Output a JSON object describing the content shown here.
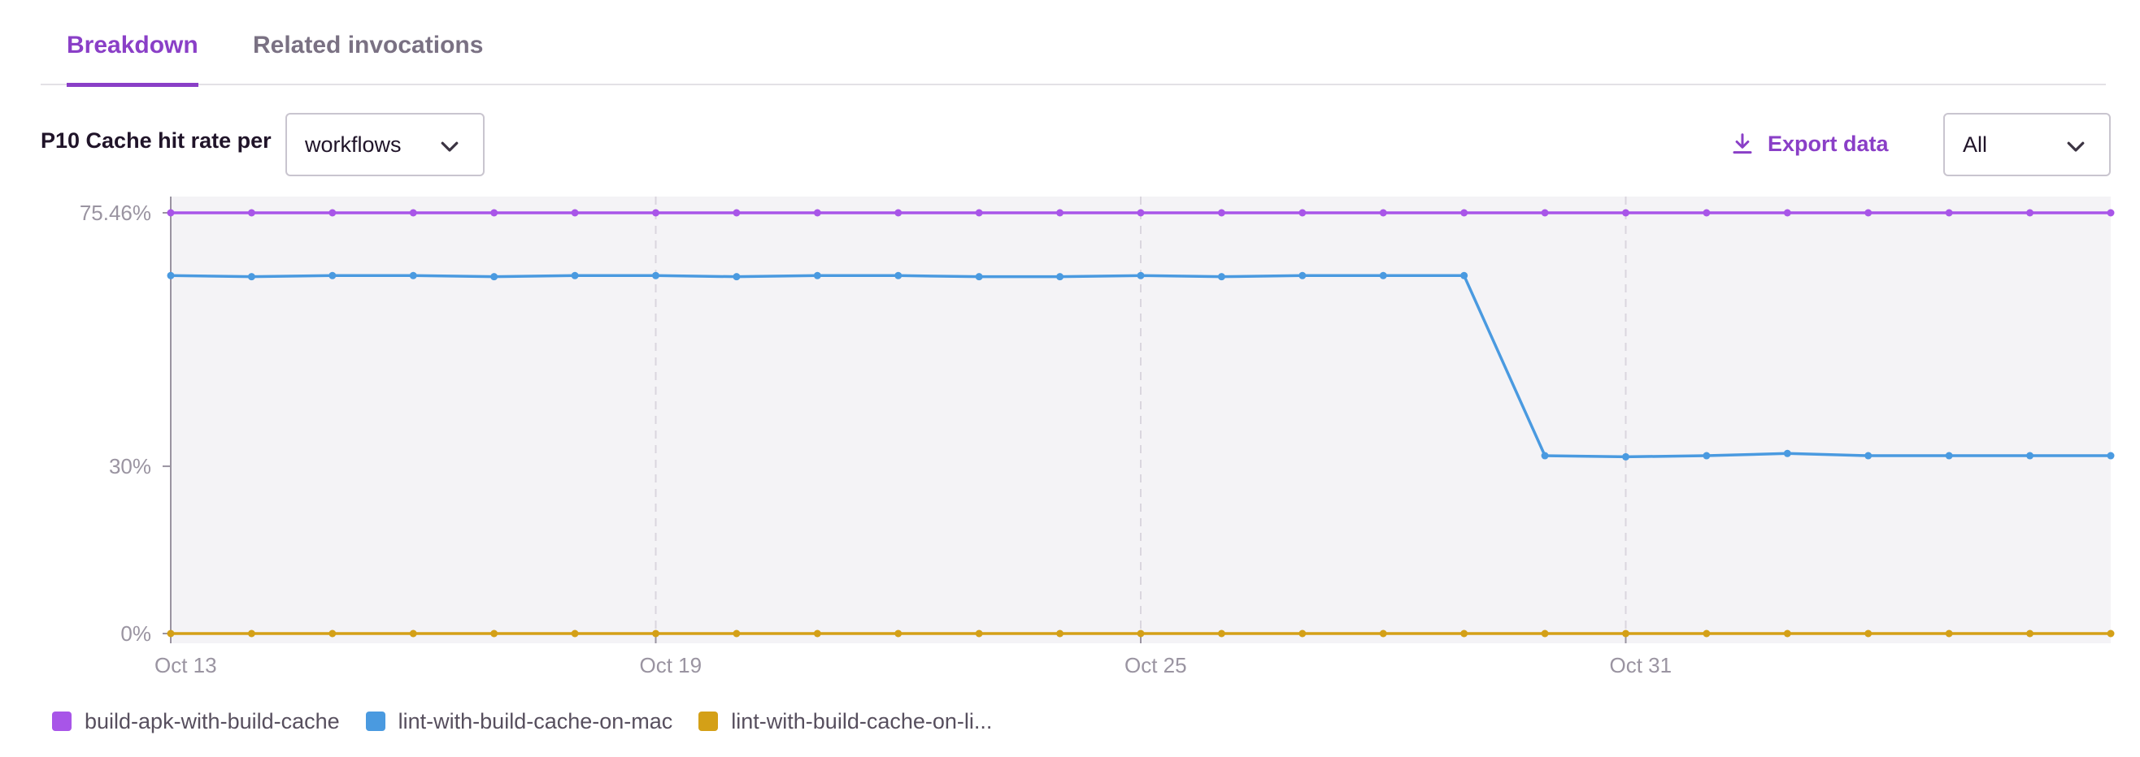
{
  "tabs": [
    {
      "label": "Breakdown",
      "active": true
    },
    {
      "label": "Related invocations",
      "active": false
    }
  ],
  "controls": {
    "metric_label": "P10 Cache hit rate per",
    "group_by_value": "workflows",
    "export_label": "Export data",
    "filter_value": "All",
    "export_icon": "download-icon",
    "chevron_icon": "chevron-down-icon"
  },
  "colors": {
    "accent": "#8a3fc7",
    "plot_background": "#f4f3f6",
    "series": [
      "#a855e8",
      "#4a9ae0",
      "#d4a017"
    ]
  },
  "chart_data": {
    "type": "line",
    "title": "",
    "xlabel": "",
    "ylabel": "",
    "ylim": [
      0,
      75.46
    ],
    "y_ticks": [
      {
        "value": 75.46,
        "label": "75.46%"
      },
      {
        "value": 30,
        "label": "30%"
      },
      {
        "value": 0,
        "label": "0%"
      }
    ],
    "x": [
      "Oct 13",
      "Oct 14",
      "Oct 15",
      "Oct 16",
      "Oct 17",
      "Oct 18",
      "Oct 19",
      "Oct 20",
      "Oct 21",
      "Oct 22",
      "Oct 23",
      "Oct 24",
      "Oct 25",
      "Oct 26",
      "Oct 27",
      "Oct 28",
      "Oct 29",
      "Oct 30",
      "Oct 31",
      "Nov 1",
      "Nov 2",
      "Nov 3",
      "Nov 4",
      "Nov 5",
      "Nov 6"
    ],
    "x_ticks": [
      "Oct 13",
      "Oct 19",
      "Oct 25",
      "Oct 31"
    ],
    "grid": {
      "vertical_at_ticks": true,
      "dashed": true
    },
    "legend_position": "bottom-left",
    "series": [
      {
        "name": "build-apk-with-build-cache",
        "color": "#a855e8",
        "values": [
          75.46,
          75.46,
          75.46,
          75.46,
          75.46,
          75.46,
          75.46,
          75.46,
          75.46,
          75.46,
          75.46,
          75.46,
          75.46,
          75.46,
          75.46,
          75.46,
          75.46,
          75.46,
          75.46,
          75.46,
          75.46,
          75.46,
          75.46,
          75.46,
          75.46
        ]
      },
      {
        "name": "lint-with-build-cache-on-mac",
        "color": "#4a9ae0",
        "values": [
          64.2,
          64.0,
          64.2,
          64.2,
          64.0,
          64.2,
          64.2,
          64.0,
          64.2,
          64.2,
          64.0,
          64.0,
          64.2,
          64.0,
          64.2,
          64.2,
          64.2,
          31.9,
          31.7,
          31.9,
          32.3,
          31.9,
          31.9,
          31.9,
          31.9
        ]
      },
      {
        "name": "lint-with-build-cache-on-li...",
        "color": "#d4a017",
        "values": [
          0,
          0,
          0,
          0,
          0,
          0,
          0,
          0,
          0,
          0,
          0,
          0,
          0,
          0,
          0,
          0,
          0,
          0,
          0,
          0,
          0,
          0,
          0,
          0,
          0
        ]
      }
    ]
  }
}
